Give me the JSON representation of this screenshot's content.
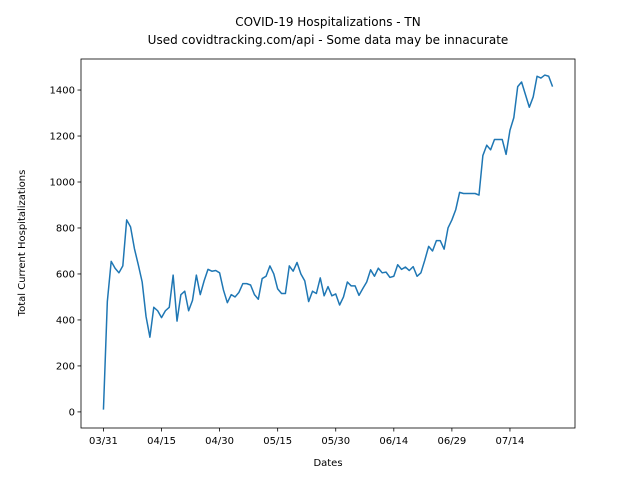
{
  "chart_data": {
    "type": "line",
    "title": "COVID-19 Hospitalizations - TN",
    "subtitle": "Used covidtracking.com/api - Some data may be innacurate",
    "x_label": "Dates",
    "y_label": "Total Current Hospitalizations",
    "x": [
      "03/31",
      "04/01",
      "04/02",
      "04/03",
      "04/04",
      "04/05",
      "04/06",
      "04/07",
      "04/08",
      "04/09",
      "04/10",
      "04/11",
      "04/12",
      "04/13",
      "04/14",
      "04/15",
      "04/16",
      "04/17",
      "04/18",
      "04/19",
      "04/20",
      "04/21",
      "04/22",
      "04/23",
      "04/24",
      "04/25",
      "04/26",
      "04/27",
      "04/28",
      "04/29",
      "04/30",
      "05/01",
      "05/02",
      "05/03",
      "05/04",
      "05/05",
      "05/06",
      "05/07",
      "05/08",
      "05/09",
      "05/10",
      "05/11",
      "05/12",
      "05/13",
      "05/14",
      "05/15",
      "05/16",
      "05/17",
      "05/18",
      "05/19",
      "05/20",
      "05/21",
      "05/22",
      "05/23",
      "05/24",
      "05/25",
      "05/26",
      "05/27",
      "05/28",
      "05/29",
      "05/30",
      "05/31",
      "06/01",
      "06/02",
      "06/03",
      "06/04",
      "06/05",
      "06/06",
      "06/07",
      "06/08",
      "06/09",
      "06/10",
      "06/11",
      "06/12",
      "06/13",
      "06/14",
      "06/15",
      "06/16",
      "06/17",
      "06/18",
      "06/19",
      "06/20",
      "06/21",
      "06/22",
      "06/23",
      "06/24",
      "06/25",
      "06/26",
      "06/27",
      "06/28",
      "06/29",
      "06/30",
      "07/01",
      "07/02",
      "07/03",
      "07/04",
      "07/05",
      "07/06",
      "07/07",
      "07/08",
      "07/09",
      "07/10",
      "07/11",
      "07/12",
      "07/13",
      "07/14",
      "07/15",
      "07/16",
      "07/17",
      "07/18",
      "07/19",
      "07/20",
      "07/21",
      "07/22",
      "07/23",
      "07/24",
      "07/25"
    ],
    "series": [
      {
        "name": "Hospitalizations",
        "color": "#1f77b4",
        "values": [
          10,
          480,
          655,
          625,
          605,
          635,
          835,
          805,
          710,
          640,
          565,
          415,
          325,
          455,
          440,
          410,
          440,
          455,
          595,
          395,
          510,
          525,
          440,
          485,
          595,
          510,
          570,
          620,
          612,
          615,
          605,
          530,
          475,
          510,
          500,
          520,
          558,
          558,
          552,
          510,
          490,
          580,
          590,
          635,
          600,
          535,
          515,
          515,
          635,
          612,
          650,
          600,
          570,
          480,
          525,
          515,
          583,
          505,
          545,
          505,
          513,
          465,
          500,
          565,
          548,
          548,
          507,
          537,
          565,
          618,
          590,
          625,
          605,
          608,
          585,
          590,
          640,
          620,
          630,
          615,
          632,
          590,
          605,
          660,
          720,
          700,
          745,
          745,
          708,
          800,
          835,
          880,
          955,
          950,
          950,
          950,
          950,
          943,
          1115,
          1160,
          1140,
          1185,
          1185,
          1185,
          1120,
          1225,
          1280,
          1415,
          1435,
          1380,
          1325,
          1370,
          1460,
          1452,
          1465,
          1460,
          1415
        ]
      }
    ],
    "xticks": [
      "03/31",
      "04/15",
      "04/30",
      "05/15",
      "05/30",
      "06/14",
      "06/29",
      "07/14"
    ],
    "ylim": [
      -70,
      1535
    ],
    "yticks": [
      0,
      200,
      400,
      600,
      800,
      1000,
      1200,
      1400
    ],
    "grid": false
  }
}
